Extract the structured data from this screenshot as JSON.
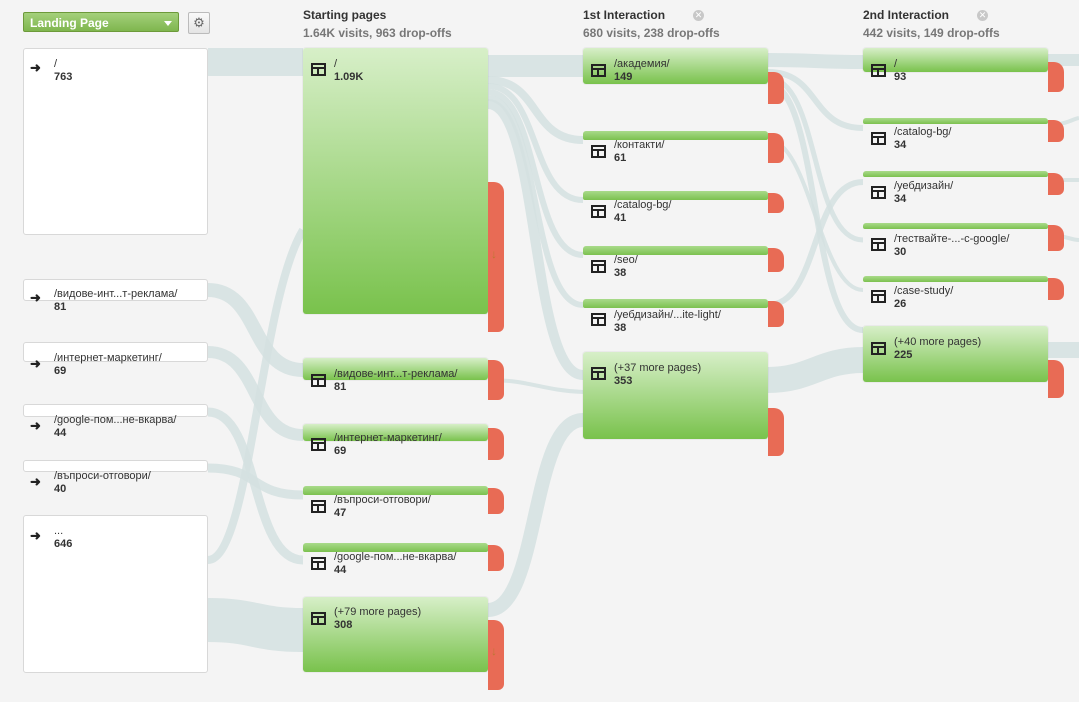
{
  "controls": {
    "dimension": "Landing Page"
  },
  "columns": [
    {
      "title": "Starting pages",
      "stats": "1.64K visits, 963 drop-offs"
    },
    {
      "title": "1st Interaction",
      "stats": "680 visits, 238 drop-offs"
    },
    {
      "title": "2nd Interaction",
      "stats": "442 visits, 149 drop-offs"
    }
  ],
  "sources": [
    {
      "label": "/",
      "value": "763"
    },
    {
      "label": "/видове-инт...т-реклама/",
      "value": "81"
    },
    {
      "label": "/интернет-маркетинг/",
      "value": "69"
    },
    {
      "label": "/google-пом...не-вкарва/",
      "value": "44"
    },
    {
      "label": "/въпроси-отговори/",
      "value": "40"
    },
    {
      "label": "...",
      "value": "646"
    }
  ],
  "starting": [
    {
      "label": "/",
      "value": "1.09K"
    },
    {
      "label": "/видове-инт...т-реклама/",
      "value": "81"
    },
    {
      "label": "/интернет-маркетинг/",
      "value": "69"
    },
    {
      "label": "/въпроси-отговори/",
      "value": "47"
    },
    {
      "label": "/google-пом...не-вкарва/",
      "value": "44"
    },
    {
      "label": "(+79 more pages)",
      "value": "308"
    }
  ],
  "first": [
    {
      "label": "/академия/",
      "value": "149"
    },
    {
      "label": "/контакти/",
      "value": "61"
    },
    {
      "label": "/catalog-bg/",
      "value": "41"
    },
    {
      "label": "/seo/",
      "value": "38"
    },
    {
      "label": "/уебдизайн/...ite-light/",
      "value": "38"
    },
    {
      "label": "(+37 more pages)",
      "value": "353"
    }
  ],
  "second": [
    {
      "label": "/",
      "value": "93"
    },
    {
      "label": "/catalog-bg/",
      "value": "34"
    },
    {
      "label": "/уебдизайн/",
      "value": "34"
    },
    {
      "label": "/тествайте-...-с-google/",
      "value": "30"
    },
    {
      "label": "/case-study/",
      "value": "26"
    },
    {
      "label": "(+40 more pages)",
      "value": "225"
    }
  ],
  "colors": {
    "node_light": "#d7efc8",
    "node_dark": "#79c24c",
    "dropoff": "#e86b55",
    "flow": "#d4e0e0"
  }
}
